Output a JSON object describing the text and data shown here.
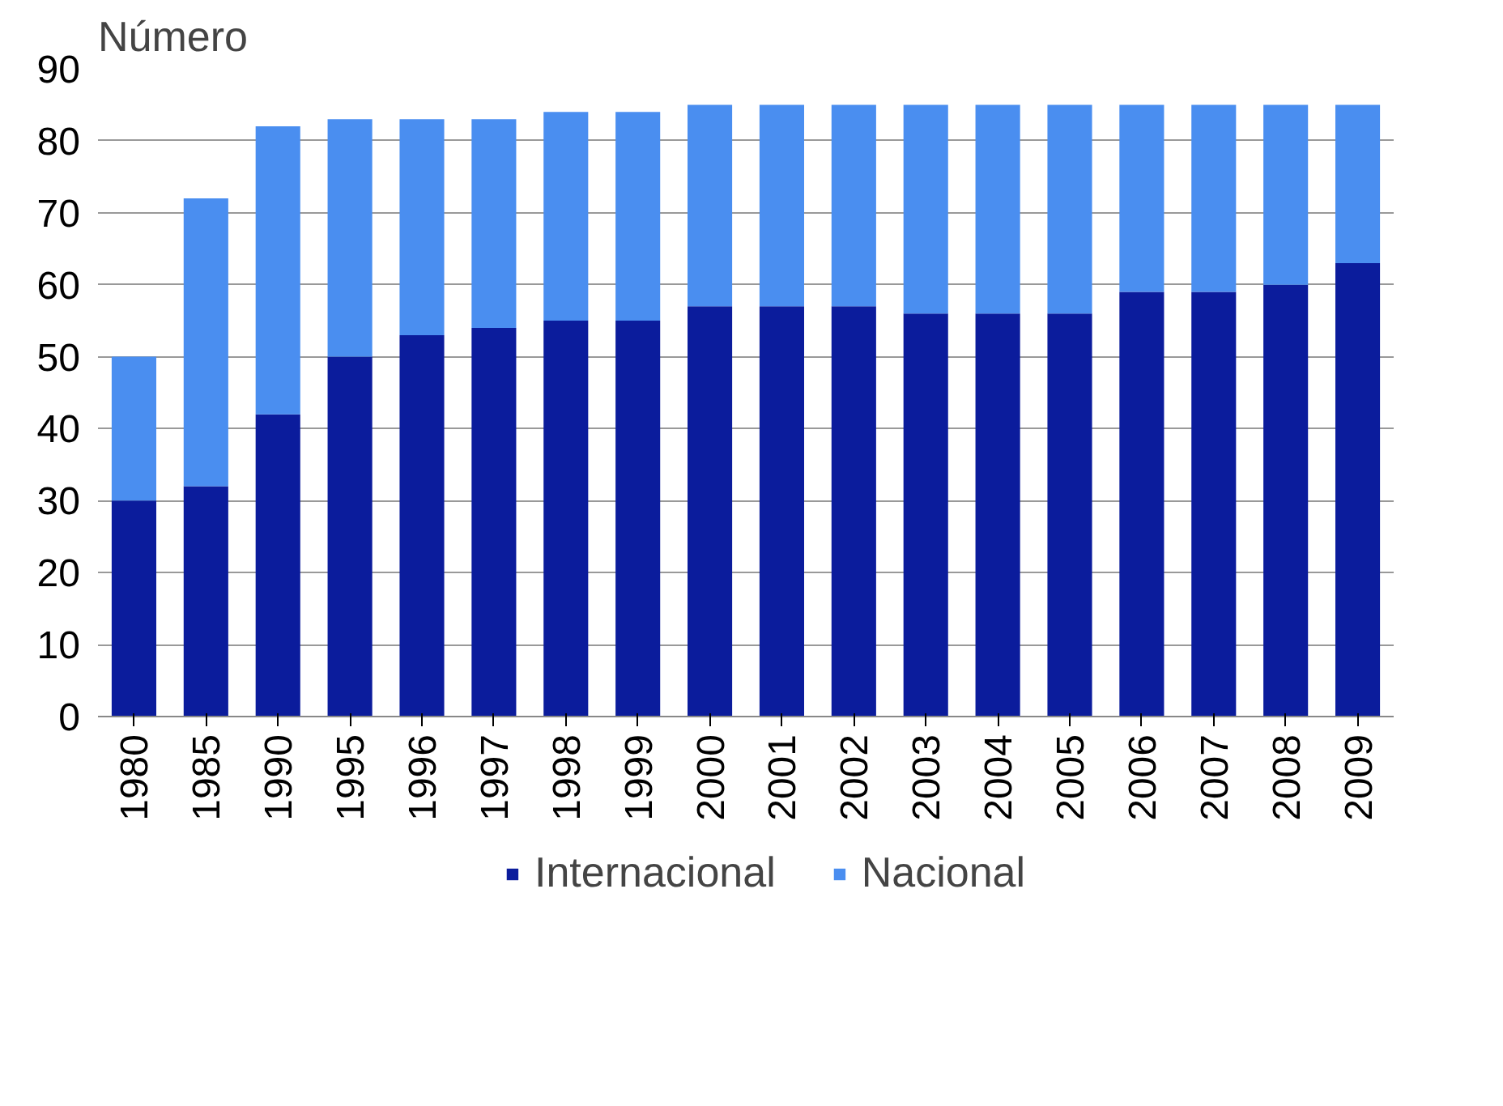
{
  "chart_data": {
    "type": "bar",
    "stacked": true,
    "ylabel": "Número",
    "categories": [
      "1980",
      "1985",
      "1990",
      "1995",
      "1996",
      "1997",
      "1998",
      "1999",
      "2000",
      "2001",
      "2002",
      "2003",
      "2004",
      "2005",
      "2006",
      "2007",
      "2008",
      "2009"
    ],
    "series": [
      {
        "name": "Internacional",
        "color": "#0b1c9c",
        "values": [
          30,
          32,
          42,
          50,
          53,
          54,
          55,
          55,
          57,
          57,
          57,
          56,
          56,
          56,
          59,
          59,
          60,
          63
        ]
      },
      {
        "name": "Nacional",
        "color": "#4a8ef0",
        "values": [
          20,
          40,
          40,
          33,
          30,
          29,
          29,
          29,
          28,
          28,
          28,
          29,
          29,
          29,
          26,
          26,
          25,
          22
        ]
      }
    ],
    "ylim": [
      0,
      90
    ],
    "yticks": [
      0,
      10,
      20,
      30,
      40,
      50,
      60,
      70,
      80,
      90
    ],
    "grid": "y",
    "legend": "bottom"
  }
}
